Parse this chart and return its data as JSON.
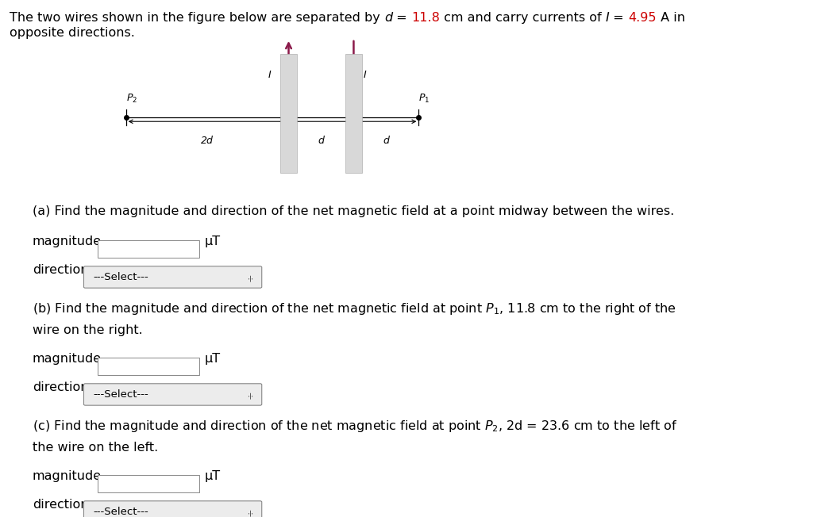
{
  "bg_color": "#ffffff",
  "wire_color_face": "#d8d8d8",
  "wire_color_edge": "#b0b0b0",
  "arrow_color": "#8b1a4a",
  "text_color": "#000000",
  "red_color": "#cc0000",
  "title_parts": [
    [
      "The two wires shown in the figure below are separated by ",
      "#000000",
      "normal"
    ],
    [
      "d",
      "#000000",
      "italic"
    ],
    [
      " = ",
      "#000000",
      "normal"
    ],
    [
      "11.8",
      "#cc0000",
      "normal"
    ],
    [
      " cm and carry currents of ",
      "#000000",
      "normal"
    ],
    [
      "I",
      "#000000",
      "italic"
    ],
    [
      " = ",
      "#000000",
      "normal"
    ],
    [
      "4.95",
      "#cc0000",
      "normal"
    ],
    [
      " A in",
      "#000000",
      "normal"
    ]
  ],
  "title_line2": "opposite directions.",
  "section_a": "(a) Find the magnitude and direction of the net magnetic field at a point midway between the wires.",
  "section_b_l1": "(b) Find the magnitude and direction of the net magnetic field at point $P_1$, 11.8 cm to the right of the",
  "section_b_l2": "wire on the right.",
  "section_c_l1": "(c) Find the magnitude and direction of the net magnetic field at point $P_2$, 2d = 23.6 cm to the left of",
  "section_c_l2": "the wire on the left.",
  "magnitude_label": "magnitude",
  "direction_label": "direction",
  "select_text": "---Select---",
  "uT_label": "μT",
  "fig_width": 10.24,
  "fig_height": 6.52,
  "fontsize_main": 11.5,
  "fontsize_diagram": 9.0
}
